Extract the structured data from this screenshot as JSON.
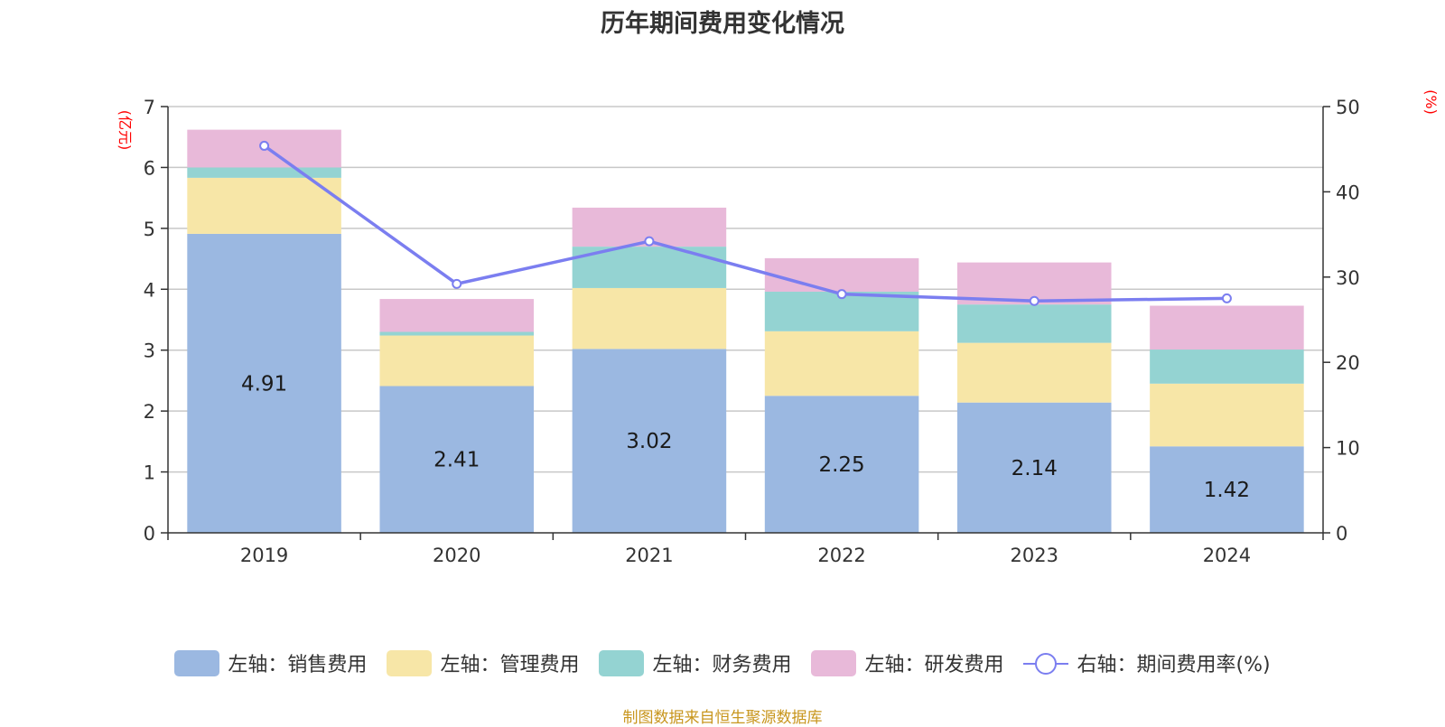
{
  "title": "历年期间费用变化情况",
  "source_text": "制图数据来自恒生聚源数据库",
  "colors": {
    "sales": "#9bb8e1",
    "admin": "#f7e6a7",
    "finance": "#94d3d2",
    "rd": "#e8b9d9",
    "line": "#7b7ef0",
    "unit": "#ff0000",
    "source": "#c8961e"
  },
  "chart_data": {
    "type": "bar",
    "stacked": true,
    "categories": [
      "2019",
      "2020",
      "2021",
      "2022",
      "2023",
      "2024"
    ],
    "left_axis": {
      "unit": "(亿元)",
      "ylim": [
        0,
        7
      ],
      "ticks": [
        "0",
        "1",
        "2",
        "3",
        "4",
        "5",
        "6",
        "7"
      ]
    },
    "right_axis": {
      "unit": "(%)",
      "ylim": [
        0,
        50
      ],
      "ticks": [
        "0",
        "10",
        "20",
        "30",
        "40",
        "50"
      ]
    },
    "series": [
      {
        "name": "左轴：销售费用",
        "key": "sales",
        "values": [
          4.91,
          2.41,
          3.02,
          2.25,
          2.14,
          1.42
        ],
        "data_labels": [
          "4.91",
          "2.41",
          "3.02",
          "2.25",
          "2.14",
          "1.42"
        ]
      },
      {
        "name": "左轴：管理费用",
        "key": "admin",
        "values": [
          0.92,
          0.83,
          1.0,
          1.06,
          0.98,
          1.03
        ]
      },
      {
        "name": "左轴：财务费用",
        "key": "finance",
        "values": [
          0.17,
          0.06,
          0.68,
          0.65,
          0.63,
          0.56
        ]
      },
      {
        "name": "左轴：研发费用",
        "key": "rd",
        "values": [
          0.62,
          0.54,
          0.64,
          0.55,
          0.69,
          0.72
        ]
      }
    ],
    "line_series": {
      "name": "右轴：期间费用率(%)",
      "key": "line",
      "values": [
        45.4,
        29.2,
        34.2,
        28.0,
        27.2,
        27.5
      ]
    },
    "grid": true,
    "legend_position": "bottom"
  }
}
